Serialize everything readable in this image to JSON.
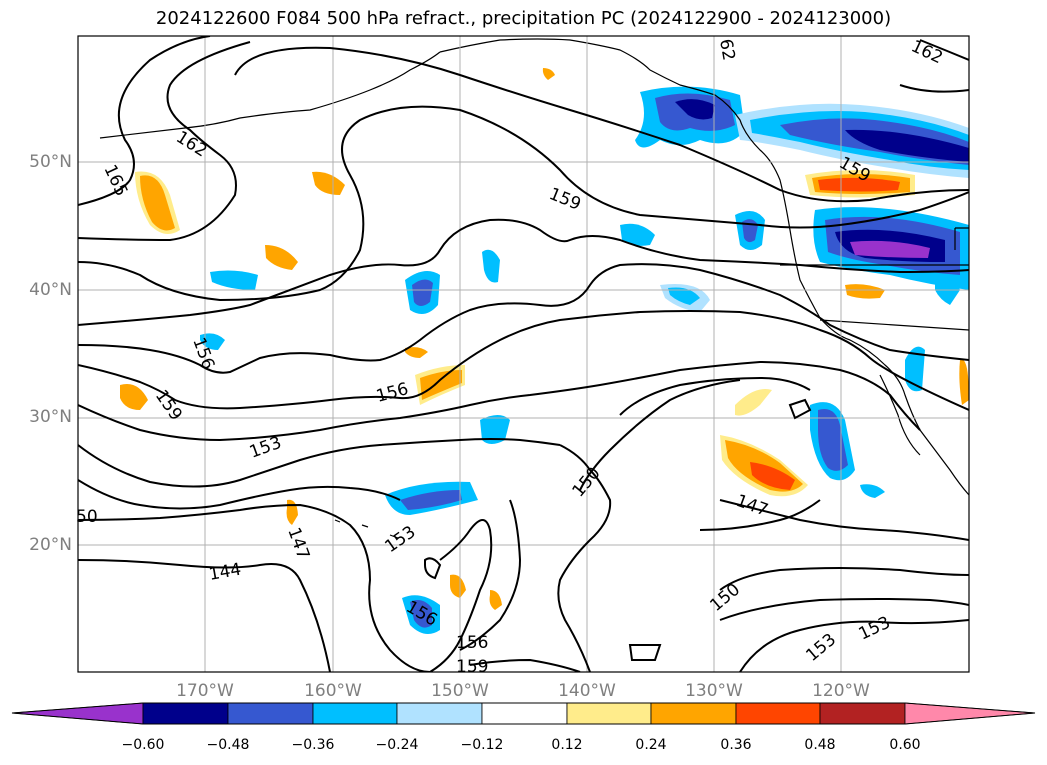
{
  "title": "2024122600 F084 500 hPa refract., precipitation PC (2024122900 - 2024123000)",
  "map": {
    "lat_labels": [
      "50°N",
      "40°N",
      "30°N",
      "20°N"
    ],
    "lon_labels": [
      "170°W",
      "160°W",
      "150°W",
      "140°W",
      "130°W",
      "120°W"
    ],
    "contour_labels": [
      "162",
      "165",
      "159",
      "156",
      "156",
      "159",
      "153",
      "150",
      "147",
      "144",
      "147",
      "153",
      "156",
      "156",
      "159",
      "150",
      "153",
      "153",
      "162",
      "159",
      "62",
      "50"
    ],
    "contour_color": "#000000",
    "coast_color": "#000000",
    "grid_color": "#b0b0b0"
  },
  "colorbar": {
    "ticks": [
      "−0.60",
      "−0.48",
      "−0.36",
      "−0.24",
      "−0.12",
      "0.12",
      "0.24",
      "0.36",
      "0.48",
      "0.60"
    ],
    "colors": [
      "#9932cc",
      "#00008b",
      "#3658d0",
      "#00bfff",
      "#b0e2ff",
      "#ffffff",
      "#ffec8b",
      "#ffa500",
      "#ff4500",
      "#b22222",
      "#ff88aa"
    ]
  }
}
